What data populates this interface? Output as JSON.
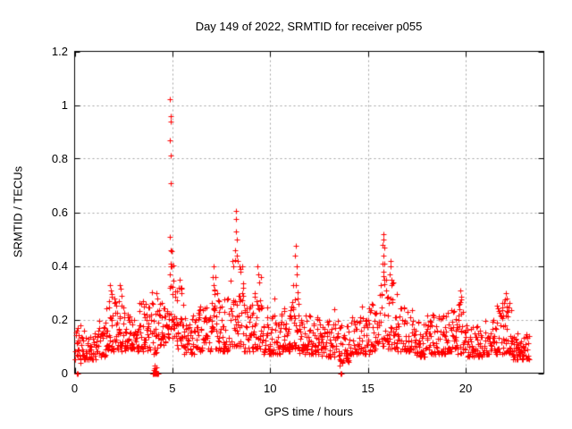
{
  "chart_data": {
    "type": "scatter",
    "title": "Day 149 of 2022, SRMTID for receiver p055",
    "xlabel": "GPS time / hours",
    "ylabel": "SRMTID / TECUs",
    "xlim": [
      0,
      24
    ],
    "ylim": [
      0,
      1.2
    ],
    "x_ticks": [
      0,
      5,
      10,
      15,
      20
    ],
    "y_ticks": [
      "0",
      "0.2",
      "0.4",
      "0.6",
      "0.8",
      "1",
      "1.2"
    ],
    "y_tick_values": [
      0,
      0.2,
      0.4,
      0.6,
      0.8,
      1.0,
      1.2
    ],
    "grid": true,
    "grid_style": "dotted",
    "grid_color": "#a0a0a0",
    "marker": "plus",
    "marker_color": "#ff0000",
    "legend": null,
    "series_name": "SRMTID",
    "data_span_hours": [
      0.05,
      23.2
    ],
    "note": "Dense ~30s-cadence scatter; density_bands give [xStart,xEnd,yLow,yHigh] envelope of the noise band read from the pixels; outlier_points are the individually visible high/low points; zero_points are dropouts plotted at y=0.",
    "density_bands": [
      [
        0.0,
        0.5,
        0.05,
        0.17
      ],
      [
        0.5,
        1.1,
        0.05,
        0.15
      ],
      [
        1.1,
        1.6,
        0.06,
        0.2
      ],
      [
        1.6,
        2.1,
        0.08,
        0.3
      ],
      [
        2.1,
        2.65,
        0.08,
        0.28
      ],
      [
        2.65,
        3.2,
        0.09,
        0.22
      ],
      [
        3.2,
        3.75,
        0.08,
        0.26
      ],
      [
        3.75,
        4.35,
        0.07,
        0.3
      ],
      [
        4.35,
        4.75,
        0.1,
        0.27
      ],
      [
        4.75,
        5.1,
        0.13,
        0.42
      ],
      [
        5.1,
        5.6,
        0.09,
        0.32
      ],
      [
        5.6,
        6.3,
        0.07,
        0.22
      ],
      [
        6.3,
        6.95,
        0.08,
        0.25
      ],
      [
        6.95,
        7.3,
        0.09,
        0.36
      ],
      [
        7.3,
        7.9,
        0.08,
        0.28
      ],
      [
        7.9,
        8.65,
        0.1,
        0.44
      ],
      [
        8.65,
        9.2,
        0.08,
        0.3
      ],
      [
        9.2,
        9.6,
        0.09,
        0.36
      ],
      [
        9.6,
        10.55,
        0.07,
        0.22
      ],
      [
        10.55,
        11.1,
        0.08,
        0.26
      ],
      [
        11.1,
        11.5,
        0.09,
        0.34
      ],
      [
        11.5,
        12.55,
        0.07,
        0.22
      ],
      [
        12.55,
        13.5,
        0.06,
        0.2
      ],
      [
        13.5,
        14.05,
        0.04,
        0.18
      ],
      [
        14.05,
        15.05,
        0.07,
        0.22
      ],
      [
        15.05,
        15.6,
        0.08,
        0.26
      ],
      [
        15.6,
        16.0,
        0.1,
        0.37
      ],
      [
        16.0,
        16.5,
        0.09,
        0.34
      ],
      [
        16.5,
        17.3,
        0.08,
        0.25
      ],
      [
        17.3,
        18.05,
        0.06,
        0.2
      ],
      [
        18.05,
        19.0,
        0.07,
        0.22
      ],
      [
        19.0,
        19.55,
        0.08,
        0.24
      ],
      [
        19.55,
        20.05,
        0.07,
        0.28
      ],
      [
        20.05,
        20.85,
        0.06,
        0.18
      ],
      [
        20.85,
        21.55,
        0.07,
        0.2
      ],
      [
        21.55,
        22.35,
        0.07,
        0.27
      ],
      [
        22.35,
        23.25,
        0.05,
        0.15
      ]
    ],
    "outlier_points": [
      [
        1.82,
        0.33
      ],
      [
        1.85,
        0.31
      ],
      [
        1.88,
        0.285
      ],
      [
        2.3,
        0.33
      ],
      [
        2.34,
        0.315
      ],
      [
        2.42,
        0.29
      ],
      [
        2.25,
        0.27
      ],
      [
        3.5,
        0.27
      ],
      [
        3.53,
        0.25
      ],
      [
        4.18,
        0.3
      ],
      [
        4.22,
        0.28
      ],
      [
        4.86,
        0.51
      ],
      [
        4.88,
        1.02
      ],
      [
        4.89,
        0.87
      ],
      [
        4.9,
        0.96
      ],
      [
        4.9,
        0.81
      ],
      [
        4.91,
        0.94
      ],
      [
        4.92,
        0.71
      ],
      [
        4.93,
        0.46
      ],
      [
        4.95,
        0.455
      ],
      [
        4.9,
        0.41
      ],
      [
        4.97,
        0.4
      ],
      [
        5.35,
        0.35
      ],
      [
        5.4,
        0.32
      ],
      [
        5.44,
        0.3
      ],
      [
        7.08,
        0.36
      ],
      [
        7.1,
        0.4
      ],
      [
        7.12,
        0.33
      ],
      [
        7.15,
        0.31
      ],
      [
        8.05,
        0.42
      ],
      [
        8.1,
        0.4
      ],
      [
        8.22,
        0.46
      ],
      [
        8.24,
        0.53
      ],
      [
        8.25,
        0.605
      ],
      [
        8.27,
        0.575
      ],
      [
        8.28,
        0.5
      ],
      [
        8.3,
        0.44
      ],
      [
        8.33,
        0.42
      ],
      [
        8.45,
        0.4
      ],
      [
        8.5,
        0.38
      ],
      [
        9.35,
        0.4
      ],
      [
        9.38,
        0.37
      ],
      [
        9.42,
        0.34
      ],
      [
        10.2,
        0.28
      ],
      [
        11.28,
        0.44
      ],
      [
        11.32,
        0.475
      ],
      [
        11.34,
        0.4
      ],
      [
        11.36,
        0.37
      ],
      [
        11.3,
        0.33
      ],
      [
        13.3,
        0.24
      ],
      [
        15.75,
        0.41
      ],
      [
        15.76,
        0.48
      ],
      [
        15.78,
        0.52
      ],
      [
        15.8,
        0.5
      ],
      [
        15.82,
        0.47
      ],
      [
        15.79,
        0.44
      ],
      [
        15.84,
        0.41
      ],
      [
        15.81,
        0.38
      ],
      [
        15.86,
        0.35
      ],
      [
        16.13,
        0.37
      ],
      [
        16.15,
        0.42
      ],
      [
        16.18,
        0.4
      ],
      [
        16.2,
        0.35
      ],
      [
        16.22,
        0.33
      ],
      [
        19.7,
        0.26
      ],
      [
        19.72,
        0.31
      ],
      [
        19.75,
        0.285
      ],
      [
        22.05,
        0.3
      ],
      [
        22.1,
        0.28
      ],
      [
        22.08,
        0.25
      ],
      [
        22.15,
        0.23
      ],
      [
        4.05,
        0.012
      ],
      [
        4.1,
        0.018
      ],
      [
        4.15,
        0.01
      ],
      [
        4.2,
        0.022
      ],
      [
        4.08,
        0.028
      ],
      [
        13.55,
        0.03
      ],
      [
        13.7,
        0.04
      ],
      [
        0.3,
        0.04
      ]
    ],
    "zero_points": [
      0.1,
      0.16,
      3.98,
      4.02,
      4.06,
      4.1,
      4.13,
      4.17,
      4.21,
      4.25,
      4.29,
      13.6,
      13.66
    ],
    "notable_peaks": [
      {
        "x": 4.9,
        "y": 1.02
      },
      {
        "x": 8.25,
        "y": 0.61
      },
      {
        "x": 15.8,
        "y": 0.52
      },
      {
        "x": 11.3,
        "y": 0.48
      }
    ]
  }
}
